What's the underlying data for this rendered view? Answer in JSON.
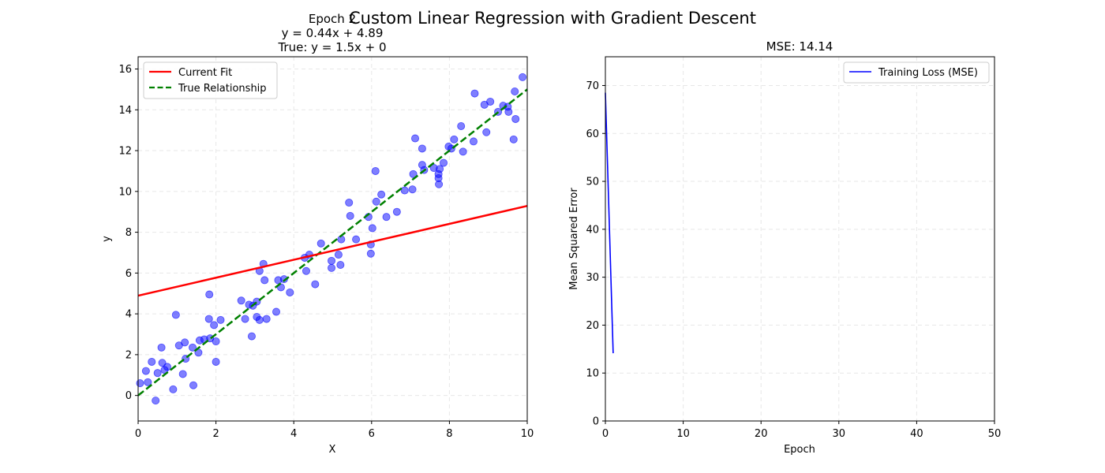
{
  "figure": {
    "suptitle": "Custom Linear Regression with Gradient Descent"
  },
  "chart_data": [
    {
      "type": "scatter",
      "title_lines": [
        "Epoch 2",
        "y = 0.44x + 4.89",
        "True: y = 1.5x + 0"
      ],
      "xlabel": "X",
      "ylabel": "y",
      "xlim": [
        0,
        10
      ],
      "ylim": [
        -1.25,
        16.6
      ],
      "xticks": [
        0,
        2,
        4,
        6,
        8,
        10
      ],
      "yticks": [
        0,
        2,
        4,
        6,
        8,
        10,
        12,
        14,
        16
      ],
      "grid": true,
      "legend_position": "top-left",
      "colors": {
        "points": "#0000ff",
        "fit": "#ff0000",
        "true": "#008000"
      },
      "series": [
        {
          "name": "data",
          "kind": "scatter",
          "points": [
            [
              0.05,
              0.6
            ],
            [
              0.2,
              1.2
            ],
            [
              0.25,
              0.65
            ],
            [
              0.35,
              1.65
            ],
            [
              0.45,
              -0.25
            ],
            [
              0.5,
              1.1
            ],
            [
              0.6,
              2.35
            ],
            [
              0.62,
              1.6
            ],
            [
              0.68,
              1.25
            ],
            [
              0.75,
              1.4
            ],
            [
              0.9,
              0.3
            ],
            [
              0.97,
              3.95
            ],
            [
              1.05,
              2.45
            ],
            [
              1.15,
              1.05
            ],
            [
              1.2,
              2.6
            ],
            [
              1.22,
              1.8
            ],
            [
              1.4,
              2.35
            ],
            [
              1.42,
              0.5
            ],
            [
              1.55,
              2.1
            ],
            [
              1.58,
              2.7
            ],
            [
              1.7,
              2.75
            ],
            [
              1.82,
              3.75
            ],
            [
              1.83,
              4.95
            ],
            [
              1.85,
              2.8
            ],
            [
              1.95,
              3.45
            ],
            [
              2.0,
              1.65
            ],
            [
              2.0,
              2.65
            ],
            [
              2.12,
              3.7
            ],
            [
              2.65,
              4.65
            ],
            [
              2.75,
              3.75
            ],
            [
              2.85,
              4.45
            ],
            [
              2.92,
              2.9
            ],
            [
              2.95,
              4.4
            ],
            [
              3.05,
              3.85
            ],
            [
              3.05,
              4.6
            ],
            [
              3.12,
              6.1
            ],
            [
              3.12,
              3.7
            ],
            [
              3.22,
              6.45
            ],
            [
              3.25,
              5.65
            ],
            [
              3.3,
              3.75
            ],
            [
              3.55,
              4.1
            ],
            [
              3.6,
              5.65
            ],
            [
              3.67,
              5.3
            ],
            [
              3.75,
              5.7
            ],
            [
              3.9,
              5.05
            ],
            [
              4.28,
              6.75
            ],
            [
              4.32,
              6.1
            ],
            [
              4.4,
              6.9
            ],
            [
              4.55,
              5.45
            ],
            [
              4.7,
              7.45
            ],
            [
              4.97,
              6.6
            ],
            [
              4.97,
              6.25
            ],
            [
              5.15,
              6.9
            ],
            [
              5.2,
              6.4
            ],
            [
              5.22,
              7.65
            ],
            [
              5.42,
              9.45
            ],
            [
              5.45,
              8.8
            ],
            [
              5.6,
              7.65
            ],
            [
              5.92,
              8.75
            ],
            [
              5.98,
              6.95
            ],
            [
              5.98,
              7.4
            ],
            [
              6.02,
              8.2
            ],
            [
              6.1,
              11.0
            ],
            [
              6.12,
              9.5
            ],
            [
              6.25,
              9.85
            ],
            [
              6.38,
              8.75
            ],
            [
              6.65,
              9.0
            ],
            [
              6.85,
              10.05
            ],
            [
              7.05,
              10.1
            ],
            [
              7.07,
              10.85
            ],
            [
              7.12,
              12.6
            ],
            [
              7.3,
              11.3
            ],
            [
              7.3,
              12.1
            ],
            [
              7.35,
              11.05
            ],
            [
              7.6,
              11.15
            ],
            [
              7.72,
              10.85
            ],
            [
              7.72,
              10.65
            ],
            [
              7.73,
              10.35
            ],
            [
              7.75,
              11.1
            ],
            [
              7.85,
              11.4
            ],
            [
              7.98,
              12.2
            ],
            [
              8.05,
              12.1
            ],
            [
              8.12,
              12.55
            ],
            [
              8.3,
              13.2
            ],
            [
              8.35,
              11.95
            ],
            [
              8.62,
              12.45
            ],
            [
              8.65,
              14.8
            ],
            [
              8.9,
              14.25
            ],
            [
              8.95,
              12.9
            ],
            [
              9.05,
              14.4
            ],
            [
              9.25,
              13.9
            ],
            [
              9.38,
              14.2
            ],
            [
              9.5,
              14.15
            ],
            [
              9.52,
              13.9
            ],
            [
              9.65,
              12.55
            ],
            [
              9.68,
              14.9
            ],
            [
              9.7,
              13.55
            ],
            [
              9.88,
              15.6
            ]
          ]
        },
        {
          "name": "Current Fit",
          "kind": "line",
          "slope": 0.44,
          "intercept": 4.89,
          "style": "solid"
        },
        {
          "name": "True Relationship",
          "kind": "line",
          "slope": 1.5,
          "intercept": 0,
          "style": "dashed"
        }
      ]
    },
    {
      "type": "line",
      "title": "MSE: 14.14",
      "xlabel": "Epoch",
      "ylabel": "Mean Squared Error",
      "xlim": [
        0,
        50
      ],
      "ylim": [
        0,
        76
      ],
      "xticks": [
        0,
        10,
        20,
        30,
        40,
        50
      ],
      "yticks": [
        0,
        10,
        20,
        30,
        40,
        50,
        60,
        70
      ],
      "grid": true,
      "legend_position": "top-right",
      "colors": {
        "loss": "#0000ff"
      },
      "series": [
        {
          "name": "Training Loss (MSE)",
          "x": [
            0,
            1
          ],
          "y": [
            68.5,
            14.14
          ]
        }
      ]
    }
  ]
}
